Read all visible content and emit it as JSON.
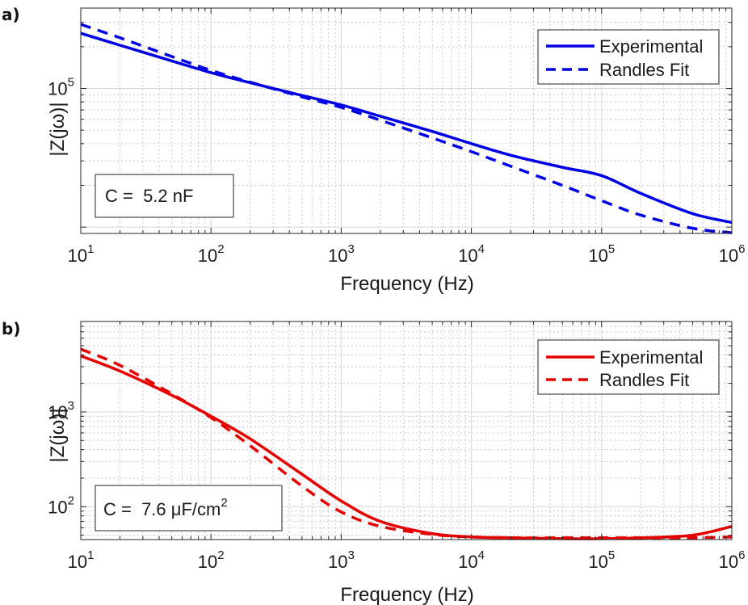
{
  "chart_data": [
    {
      "type": "line",
      "panel_label": "a)",
      "title": "",
      "xlabel": "Frequency (Hz)",
      "ylabel": "|Z(jω)|",
      "xscale": "log",
      "yscale": "log",
      "xlim": [
        10,
        1000000
      ],
      "ylim": [
        9000,
        380000
      ],
      "x_ticks": [
        {
          "base": "10",
          "exp": "1",
          "value": 10
        },
        {
          "base": "10",
          "exp": "2",
          "value": 100
        },
        {
          "base": "10",
          "exp": "3",
          "value": 1000
        },
        {
          "base": "10",
          "exp": "4",
          "value": 10000
        },
        {
          "base": "10",
          "exp": "5",
          "value": 100000
        },
        {
          "base": "10",
          "exp": "6",
          "value": 1000000
        }
      ],
      "y_ticks": [
        {
          "base": "10",
          "exp": "5",
          "value": 100000
        }
      ],
      "grid": true,
      "legend_position": "top-right",
      "annotation": {
        "text": "C =  5.2 nF",
        "position": "bottom-left"
      },
      "x": [
        10,
        20,
        50,
        100,
        200,
        500,
        1000,
        2000,
        5000,
        10000,
        20000,
        50000,
        100000,
        200000,
        500000,
        1000000
      ],
      "series": [
        {
          "name": "Experimental",
          "color": "#0000e6",
          "style": "solid",
          "values": [
            250000,
            205000,
            158000,
            130000,
            110000,
            89000,
            76000,
            63000,
            49000,
            40000,
            33000,
            27000,
            23500,
            17500,
            12500,
            10800
          ]
        },
        {
          "name": "Randles Fit",
          "color": "#0000e6",
          "style": "dashed",
          "values": [
            290000,
            232000,
            170000,
            135000,
            111000,
            87000,
            73000,
            59000,
            44000,
            35000,
            27500,
            20000,
            15500,
            12200,
            9800,
            9100
          ]
        }
      ]
    },
    {
      "type": "line",
      "panel_label": "b)",
      "title": "",
      "xlabel": "Frequency (Hz)",
      "ylabel": "|Z(jω)|",
      "xscale": "log",
      "yscale": "log",
      "xlim": [
        10,
        1000000
      ],
      "ylim": [
        45,
        9000
      ],
      "x_ticks": [
        {
          "base": "10",
          "exp": "1",
          "value": 10
        },
        {
          "base": "10",
          "exp": "2",
          "value": 100
        },
        {
          "base": "10",
          "exp": "3",
          "value": 1000
        },
        {
          "base": "10",
          "exp": "4",
          "value": 10000
        },
        {
          "base": "10",
          "exp": "5",
          "value": 100000
        },
        {
          "base": "10",
          "exp": "6",
          "value": 1000000
        }
      ],
      "y_ticks": [
        {
          "base": "10",
          "exp": "2",
          "value": 100
        },
        {
          "base": "10",
          "exp": "3",
          "value": 1000
        }
      ],
      "grid": true,
      "legend_position": "top-right",
      "annotation": {
        "text": "C =  7.6 μF/cm",
        "sup": "2",
        "position": "bottom-left"
      },
      "x": [
        10,
        20,
        50,
        100,
        200,
        500,
        1000,
        2000,
        5000,
        10000,
        20000,
        50000,
        100000,
        200000,
        500000,
        1000000
      ],
      "series": [
        {
          "name": "Experimental",
          "color": "#e60000",
          "style": "solid",
          "values": [
            3900,
            2700,
            1500,
            900,
            520,
            220,
            115,
            70,
            52,
            48,
            47,
            46,
            46,
            47,
            50,
            62
          ]
        },
        {
          "name": "Randles Fit",
          "color": "#e60000",
          "style": "dashed",
          "values": [
            4600,
            3100,
            1550,
            870,
            440,
            165,
            88,
            62,
            51,
            48,
            47,
            47,
            47,
            47,
            47,
            48
          ]
        }
      ]
    }
  ]
}
